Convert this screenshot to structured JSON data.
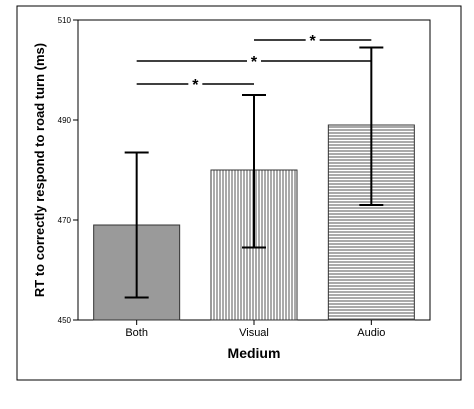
{
  "chart_data": {
    "type": "bar",
    "categories": [
      "Both",
      "Visual",
      "Audio"
    ],
    "values": [
      469,
      480,
      489
    ],
    "error_bars": [
      {
        "low": 454.5,
        "high": 483.5
      },
      {
        "low": 464.5,
        "high": 495
      },
      {
        "low": 473,
        "high": 504.5
      }
    ],
    "bar_patterns": [
      "solid-gray",
      "vertical-lines",
      "horizontal-lines"
    ],
    "significance": [
      {
        "from": "Both",
        "to": "Visual",
        "label": "*"
      },
      {
        "from": "Both",
        "to": "Audio",
        "label": "*"
      },
      {
        "from": "Visual",
        "to": "Audio",
        "label": "*"
      }
    ],
    "xlabel": "Medium",
    "ylabel": "RT to correctly respond to road turn (ms)",
    "ylim": [
      450,
      510
    ],
    "yticks": [
      450,
      470,
      490,
      510
    ],
    "grid": false,
    "colors": {
      "bar_fill_solid": "#9a9a9a",
      "pattern_line": "#555555",
      "axis": "#000000"
    }
  }
}
